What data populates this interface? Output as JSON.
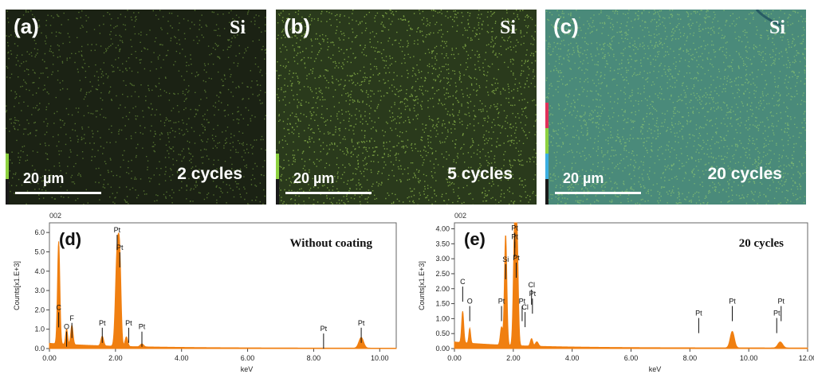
{
  "maps": [
    {
      "label": "(a)",
      "element": "Si",
      "cycles": "2 cycles",
      "scale": "20 µm",
      "base_color": "#1b2214",
      "speck_color": "#7fae45",
      "colorbar": [
        "#8cd13f",
        "#1a1a1a"
      ]
    },
    {
      "label": "(b)",
      "element": "Si",
      "cycles": "5 cycles",
      "scale": "20 µm",
      "base_color": "#2a3a1c",
      "speck_color": "#9fd055",
      "colorbar": [
        "#8cd13f",
        "#1a1a1a"
      ]
    },
    {
      "label": "(c)",
      "element": "Si",
      "cycles": "20 cycles",
      "scale": "20 µm",
      "base_color": "#4a8a7a",
      "speck_color": "#8fc870",
      "colorbar": [
        "#e0305a",
        "#8cd13f",
        "#3aaee0",
        "#1a1a1a"
      ]
    }
  ],
  "chart_data": [
    {
      "type": "line",
      "panel_label": "(d)",
      "title": "Without coating",
      "corner_label": "002",
      "xlabel": "keV",
      "ylabel": "Counts[x1.E+3]",
      "xlim": [
        0,
        10.5
      ],
      "ylim": [
        0,
        6.5
      ],
      "xticks": [
        "0.00",
        "2.00",
        "4.00",
        "6.00",
        "8.00",
        "10.00"
      ],
      "xtick_values": [
        0,
        2,
        4,
        6,
        8,
        10
      ],
      "yticks": [
        "0.0",
        "1.0",
        "2.0",
        "3.0",
        "4.0",
        "5.0",
        "6.0"
      ],
      "ytick_values": [
        0,
        1,
        2,
        3,
        4,
        5,
        6
      ],
      "series": [
        {
          "color": "#f07f10",
          "peaks": [
            {
              "x": 0.28,
              "y": 5.3,
              "w": 0.035
            },
            {
              "x": 0.52,
              "y": 0.8,
              "w": 0.03
            },
            {
              "x": 0.68,
              "y": 1.0,
              "w": 0.035
            },
            {
              "x": 1.6,
              "y": 0.5,
              "w": 0.04
            },
            {
              "x": 2.05,
              "y": 4.8,
              "w": 0.05
            },
            {
              "x": 2.13,
              "y": 3.9,
              "w": 0.04
            },
            {
              "x": 2.33,
              "y": 0.5,
              "w": 0.04
            },
            {
              "x": 2.8,
              "y": 0.15,
              "w": 0.05
            },
            {
              "x": 9.44,
              "y": 0.55,
              "w": 0.07
            }
          ],
          "background": 0.25
        }
      ],
      "annotations": [
        {
          "text": "C",
          "x": 0.28,
          "y": 2.0
        },
        {
          "text": "O",
          "x": 0.52,
          "y": 1.0
        },
        {
          "text": "F",
          "x": 0.68,
          "y": 1.45
        },
        {
          "text": "Pt",
          "x": 1.6,
          "y": 1.2
        },
        {
          "text": "Pt",
          "x": 2.05,
          "y": 6.0
        },
        {
          "text": "Pt",
          "x": 2.13,
          "y": 5.1
        },
        {
          "text": "Pt",
          "x": 2.4,
          "y": 1.2
        },
        {
          "text": "Pt",
          "x": 2.8,
          "y": 1.0
        },
        {
          "text": "Pt",
          "x": 8.3,
          "y": 0.9
        },
        {
          "text": "Pt",
          "x": 9.44,
          "y": 1.2
        }
      ]
    },
    {
      "type": "line",
      "panel_label": "(e)",
      "title": "20 cycles",
      "corner_label": "002",
      "xlabel": "keV",
      "ylabel": "Counts[x1.E+3]",
      "xlim": [
        0,
        12.0
      ],
      "ylim": [
        0,
        4.2
      ],
      "xticks": [
        "0.00",
        "2.00",
        "4.00",
        "6.00",
        "8.00",
        "10.00",
        "12.00"
      ],
      "xtick_values": [
        0,
        2,
        4,
        6,
        8,
        10,
        12
      ],
      "yticks": [
        "0.00",
        "0.50",
        "1.00",
        "1.50",
        "2.00",
        "2.50",
        "3.00",
        "3.50",
        "4.00"
      ],
      "ytick_values": [
        0,
        0.5,
        1.0,
        1.5,
        2.0,
        2.5,
        3.0,
        3.5,
        4.0
      ],
      "series": [
        {
          "color": "#f07f10",
          "peaks": [
            {
              "x": 0.28,
              "y": 1.05,
              "w": 0.035
            },
            {
              "x": 0.52,
              "y": 0.5,
              "w": 0.03
            },
            {
              "x": 1.6,
              "y": 0.6,
              "w": 0.04
            },
            {
              "x": 1.74,
              "y": 3.7,
              "w": 0.04
            },
            {
              "x": 2.05,
              "y": 4.05,
              "w": 0.045
            },
            {
              "x": 2.13,
              "y": 3.2,
              "w": 0.04
            },
            {
              "x": 2.62,
              "y": 0.25,
              "w": 0.04
            },
            {
              "x": 2.8,
              "y": 0.15,
              "w": 0.05
            },
            {
              "x": 9.44,
              "y": 0.55,
              "w": 0.07
            },
            {
              "x": 11.07,
              "y": 0.2,
              "w": 0.08
            }
          ],
          "background": 0.2
        }
      ],
      "annotations": [
        {
          "text": "C",
          "x": 0.28,
          "y": 2.15
        },
        {
          "text": "O",
          "x": 0.52,
          "y": 1.5
        },
        {
          "text": "Pt",
          "x": 1.6,
          "y": 1.5
        },
        {
          "text": "Si",
          "x": 1.74,
          "y": 2.9
        },
        {
          "text": "Pt",
          "x": 2.05,
          "y": 3.65
        },
        {
          "text": "Pt",
          "x": 2.1,
          "y": 2.95
        },
        {
          "text": "Pt",
          "x": 2.05,
          "y": 3.95
        },
        {
          "text": "Cl",
          "x": 2.62,
          "y": 2.05
        },
        {
          "text": "Pt",
          "x": 2.65,
          "y": 1.75
        },
        {
          "text": "Pt",
          "x": 2.3,
          "y": 1.5
        },
        {
          "text": "Cl",
          "x": 2.4,
          "y": 1.3
        },
        {
          "text": "Pt",
          "x": 8.3,
          "y": 1.1
        },
        {
          "text": "Pt",
          "x": 9.44,
          "y": 1.5
        },
        {
          "text": "Pt",
          "x": 10.95,
          "y": 1.1
        },
        {
          "text": "Pt",
          "x": 11.1,
          "y": 1.5
        }
      ]
    }
  ]
}
